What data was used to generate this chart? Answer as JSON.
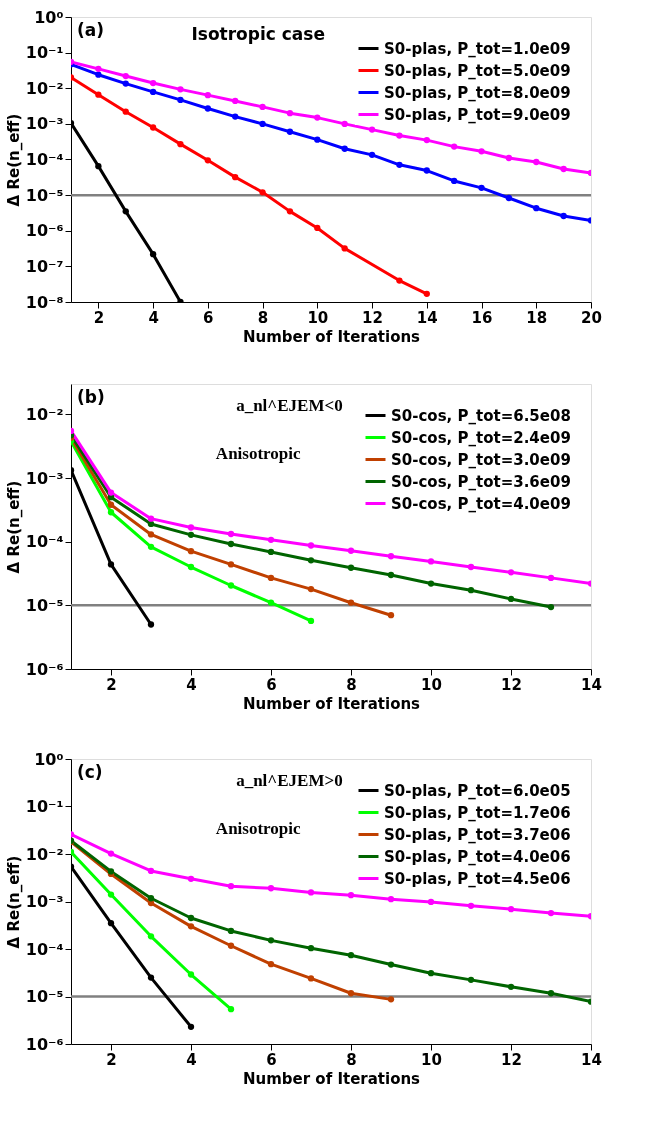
{
  "chart_data": [
    {
      "type": "line",
      "annotations": [
        "(a)",
        "Isotropic case"
      ],
      "xlabel": "Number of Iterations",
      "ylabel": "Δ Re(n_eff)",
      "log": true,
      "legend": "top right",
      "marker": "circle",
      "line_style": "solid",
      "grid": false,
      "xlim": [
        1,
        20
      ],
      "xticks": [
        2,
        4,
        6,
        8,
        10,
        12,
        14,
        16,
        18,
        20
      ],
      "ylim": [
        1e-08,
        1
      ],
      "yticks": [
        {
          "value": 1e-08,
          "label": "10⁻⁸"
        },
        {
          "value": 1e-07,
          "label": "10⁻⁷"
        },
        {
          "value": 1e-06,
          "label": "10⁻⁶"
        },
        {
          "value": 1e-05,
          "label": "10⁻⁵"
        },
        {
          "value": 0.0001,
          "label": "10⁻⁴"
        },
        {
          "value": 0.001,
          "label": "10⁻³"
        },
        {
          "value": 0.01,
          "label": "10⁻²"
        },
        {
          "value": 0.1,
          "label": "10⁻¹"
        },
        {
          "value": 1,
          "label": "10⁰"
        }
      ],
      "ref_lines": [
        {
          "axis": "y",
          "value": 1e-05,
          "color": "#808080"
        }
      ],
      "series": [
        {
          "name": "S0-plas, P_tot=1.0e09",
          "color": "#000000",
          "x": [
            1,
            2,
            3,
            4,
            5
          ],
          "values": [
            0.00105,
            6.5e-05,
            3.5e-06,
            2.2e-07,
            1e-08
          ]
        },
        {
          "name": "S0-plas, P_tot=5.0e09",
          "color": "#ff0000",
          "x": [
            1,
            2,
            3,
            4,
            5,
            6,
            7,
            8,
            9,
            10,
            11,
            13,
            14
          ],
          "values": [
            0.02,
            0.0066,
            0.0022,
            0.00079,
            0.00027,
            9.5e-05,
            3.2e-05,
            1.2e-05,
            3.5e-06,
            1.2e-06,
            3.2e-07,
            4e-08,
            1.7e-08
          ]
        },
        {
          "name": "S0-plas, P_tot=8.0e09",
          "color": "#0000ff",
          "x": [
            1,
            2,
            3,
            4,
            5,
            6,
            7,
            8,
            9,
            10,
            11,
            12,
            13,
            14,
            15,
            16,
            17,
            18,
            19,
            20
          ],
          "values": [
            0.047,
            0.024,
            0.0135,
            0.0079,
            0.0047,
            0.0027,
            0.0016,
            0.001,
            0.0006,
            0.00036,
            0.0002,
            0.000135,
            7.1e-05,
            4.9e-05,
            2.5e-05,
            1.6e-05,
            8.3e-06,
            4.3e-06,
            2.6e-06,
            1.95e-06
          ]
        },
        {
          "name": "S0-plas, P_tot=9.0e09",
          "color": "#ff00ff",
          "x": [
            1,
            2,
            3,
            4,
            5,
            6,
            7,
            8,
            9,
            10,
            11,
            12,
            13,
            14,
            15,
            16,
            17,
            18,
            19,
            20
          ],
          "values": [
            0.055,
            0.035,
            0.022,
            0.014,
            0.0093,
            0.0064,
            0.0044,
            0.003,
            0.002,
            0.0015,
            0.001,
            0.00069,
            0.00047,
            0.00035,
            0.00023,
            0.00017,
            0.00011,
            8.5e-05,
            5.4e-05,
            4.2e-05
          ]
        }
      ]
    },
    {
      "type": "line",
      "annotations": [
        "(b)",
        "a_nl^EJEM<0",
        "Anisotropic"
      ],
      "xlabel": "Number of Iterations",
      "ylabel": "Δ Re(n_eff)",
      "log": true,
      "legend": "top right",
      "marker": "circle",
      "line_style": "solid",
      "grid": false,
      "xlim": [
        1,
        14
      ],
      "xticks": [
        2,
        4,
        6,
        8,
        10,
        12,
        14
      ],
      "ylim": [
        1e-06,
        0.03
      ],
      "yticks": [
        {
          "value": 1e-06,
          "label": "10⁻⁶"
        },
        {
          "value": 1e-05,
          "label": "10⁻⁵"
        },
        {
          "value": 0.0001,
          "label": "10⁻⁴"
        },
        {
          "value": 0.001,
          "label": "10⁻³"
        },
        {
          "value": 0.01,
          "label": "10⁻²"
        }
      ],
      "ref_lines": [
        {
          "axis": "y",
          "value": 1e-05,
          "color": "#808080"
        }
      ],
      "series": [
        {
          "name": "S0-cos, P_tot=6.5e08",
          "color": "#000000",
          "x": [
            1,
            2,
            3
          ],
          "values": [
            0.00133,
            4.4e-05,
            5e-06
          ]
        },
        {
          "name": "S0-cos, P_tot=2.4e09",
          "color": "#00ff00",
          "x": [
            1,
            2,
            3,
            4,
            5,
            6,
            7
          ],
          "values": [
            0.0038,
            0.00029,
            8.3e-05,
            4e-05,
            2.05e-05,
            1.1e-05,
            5.7e-06
          ]
        },
        {
          "name": "S0-cos, P_tot=3.0e09",
          "color": "#c04000",
          "x": [
            1,
            2,
            3,
            4,
            5,
            6,
            7,
            8,
            9
          ],
          "values": [
            0.0043,
            0.00038,
            0.00013,
            7.1e-05,
            4.4e-05,
            2.7e-05,
            1.8e-05,
            1.1e-05,
            7e-06
          ]
        },
        {
          "name": "S0-cos, P_tot=3.6e09",
          "color": "#006400",
          "x": [
            1,
            2,
            3,
            4,
            5,
            6,
            7,
            8,
            9,
            10,
            11,
            12,
            13
          ],
          "values": [
            0.0047,
            0.0005,
            0.00019,
            0.000128,
            9.2e-05,
            6.9e-05,
            5.1e-05,
            3.9e-05,
            3e-05,
            2.2e-05,
            1.73e-05,
            1.26e-05,
            9.4e-06
          ]
        },
        {
          "name": "S0-cos, P_tot=4.0e09",
          "color": "#ff00ff",
          "x": [
            1,
            2,
            3,
            4,
            5,
            6,
            7,
            8,
            9,
            10,
            11,
            12,
            13,
            14
          ],
          "values": [
            0.0055,
            0.00059,
            0.00023,
            0.000167,
            0.000132,
            0.000107,
            8.7e-05,
            7.2e-05,
            5.9e-05,
            4.9e-05,
            4e-05,
            3.3e-05,
            2.7e-05,
            2.2e-05
          ]
        }
      ]
    },
    {
      "type": "line",
      "annotations": [
        "(c)",
        "a_nl^EJEM>0",
        "Anisotropic"
      ],
      "xlabel": "Number of Iterations",
      "ylabel": "Δ Re(n_eff)",
      "log": true,
      "legend": "top right",
      "marker": "circle",
      "line_style": "solid",
      "grid": false,
      "xlim": [
        1,
        14
      ],
      "xticks": [
        2,
        4,
        6,
        8,
        10,
        12,
        14
      ],
      "ylim": [
        1e-06,
        1
      ],
      "yticks": [
        {
          "value": 1e-06,
          "label": "10⁻⁶"
        },
        {
          "value": 1e-05,
          "label": "10⁻⁵"
        },
        {
          "value": 0.0001,
          "label": "10⁻⁴"
        },
        {
          "value": 0.001,
          "label": "10⁻³"
        },
        {
          "value": 0.01,
          "label": "10⁻²"
        },
        {
          "value": 0.1,
          "label": "10⁻¹"
        },
        {
          "value": 1,
          "label": "10⁰"
        }
      ],
      "ref_lines": [
        {
          "axis": "y",
          "value": 1e-05,
          "color": "#808080"
        }
      ],
      "series": [
        {
          "name": "S0-plas, P_tot=6.0e05",
          "color": "#000000",
          "x": [
            1,
            2,
            3,
            4
          ],
          "values": [
            0.0054,
            0.00035,
            2.5e-05,
            2.3e-06
          ]
        },
        {
          "name": "S0-plas, P_tot=1.7e06",
          "color": "#00ff00",
          "x": [
            1,
            2,
            3,
            4,
            5
          ],
          "values": [
            0.011,
            0.0014,
            0.000185,
            2.9e-05,
            5.4e-06
          ]
        },
        {
          "name": "S0-plas, P_tot=3.7e06",
          "color": "#c04000",
          "x": [
            1,
            2,
            3,
            4,
            5,
            6,
            7,
            8,
            9
          ],
          "values": [
            0.018,
            0.0038,
            0.00093,
            0.0003,
            0.000117,
            4.8e-05,
            2.4e-05,
            1.17e-05,
            8.7e-06
          ]
        },
        {
          "name": "S0-plas, P_tot=4.0e06",
          "color": "#006400",
          "x": [
            1,
            2,
            3,
            4,
            5,
            6,
            7,
            8,
            9,
            10,
            11,
            12,
            13,
            14
          ],
          "values": [
            0.019,
            0.0043,
            0.00117,
            0.00045,
            0.00024,
            0.000152,
            0.000104,
            7.4e-05,
            4.7e-05,
            3.1e-05,
            2.24e-05,
            1.6e-05,
            1.17e-05,
            7.8e-06
          ]
        },
        {
          "name": "S0-plas, P_tot=4.5e06",
          "color": "#ff00ff",
          "x": [
            1,
            2,
            3,
            4,
            5,
            6,
            7,
            8,
            9,
            10,
            11,
            12,
            13,
            14
          ],
          "values": [
            0.026,
            0.0102,
            0.0044,
            0.003,
            0.0021,
            0.0019,
            0.00155,
            0.00136,
            0.00112,
            0.00098,
            0.00081,
            0.00069,
            0.00057,
            0.00049
          ]
        }
      ]
    }
  ]
}
